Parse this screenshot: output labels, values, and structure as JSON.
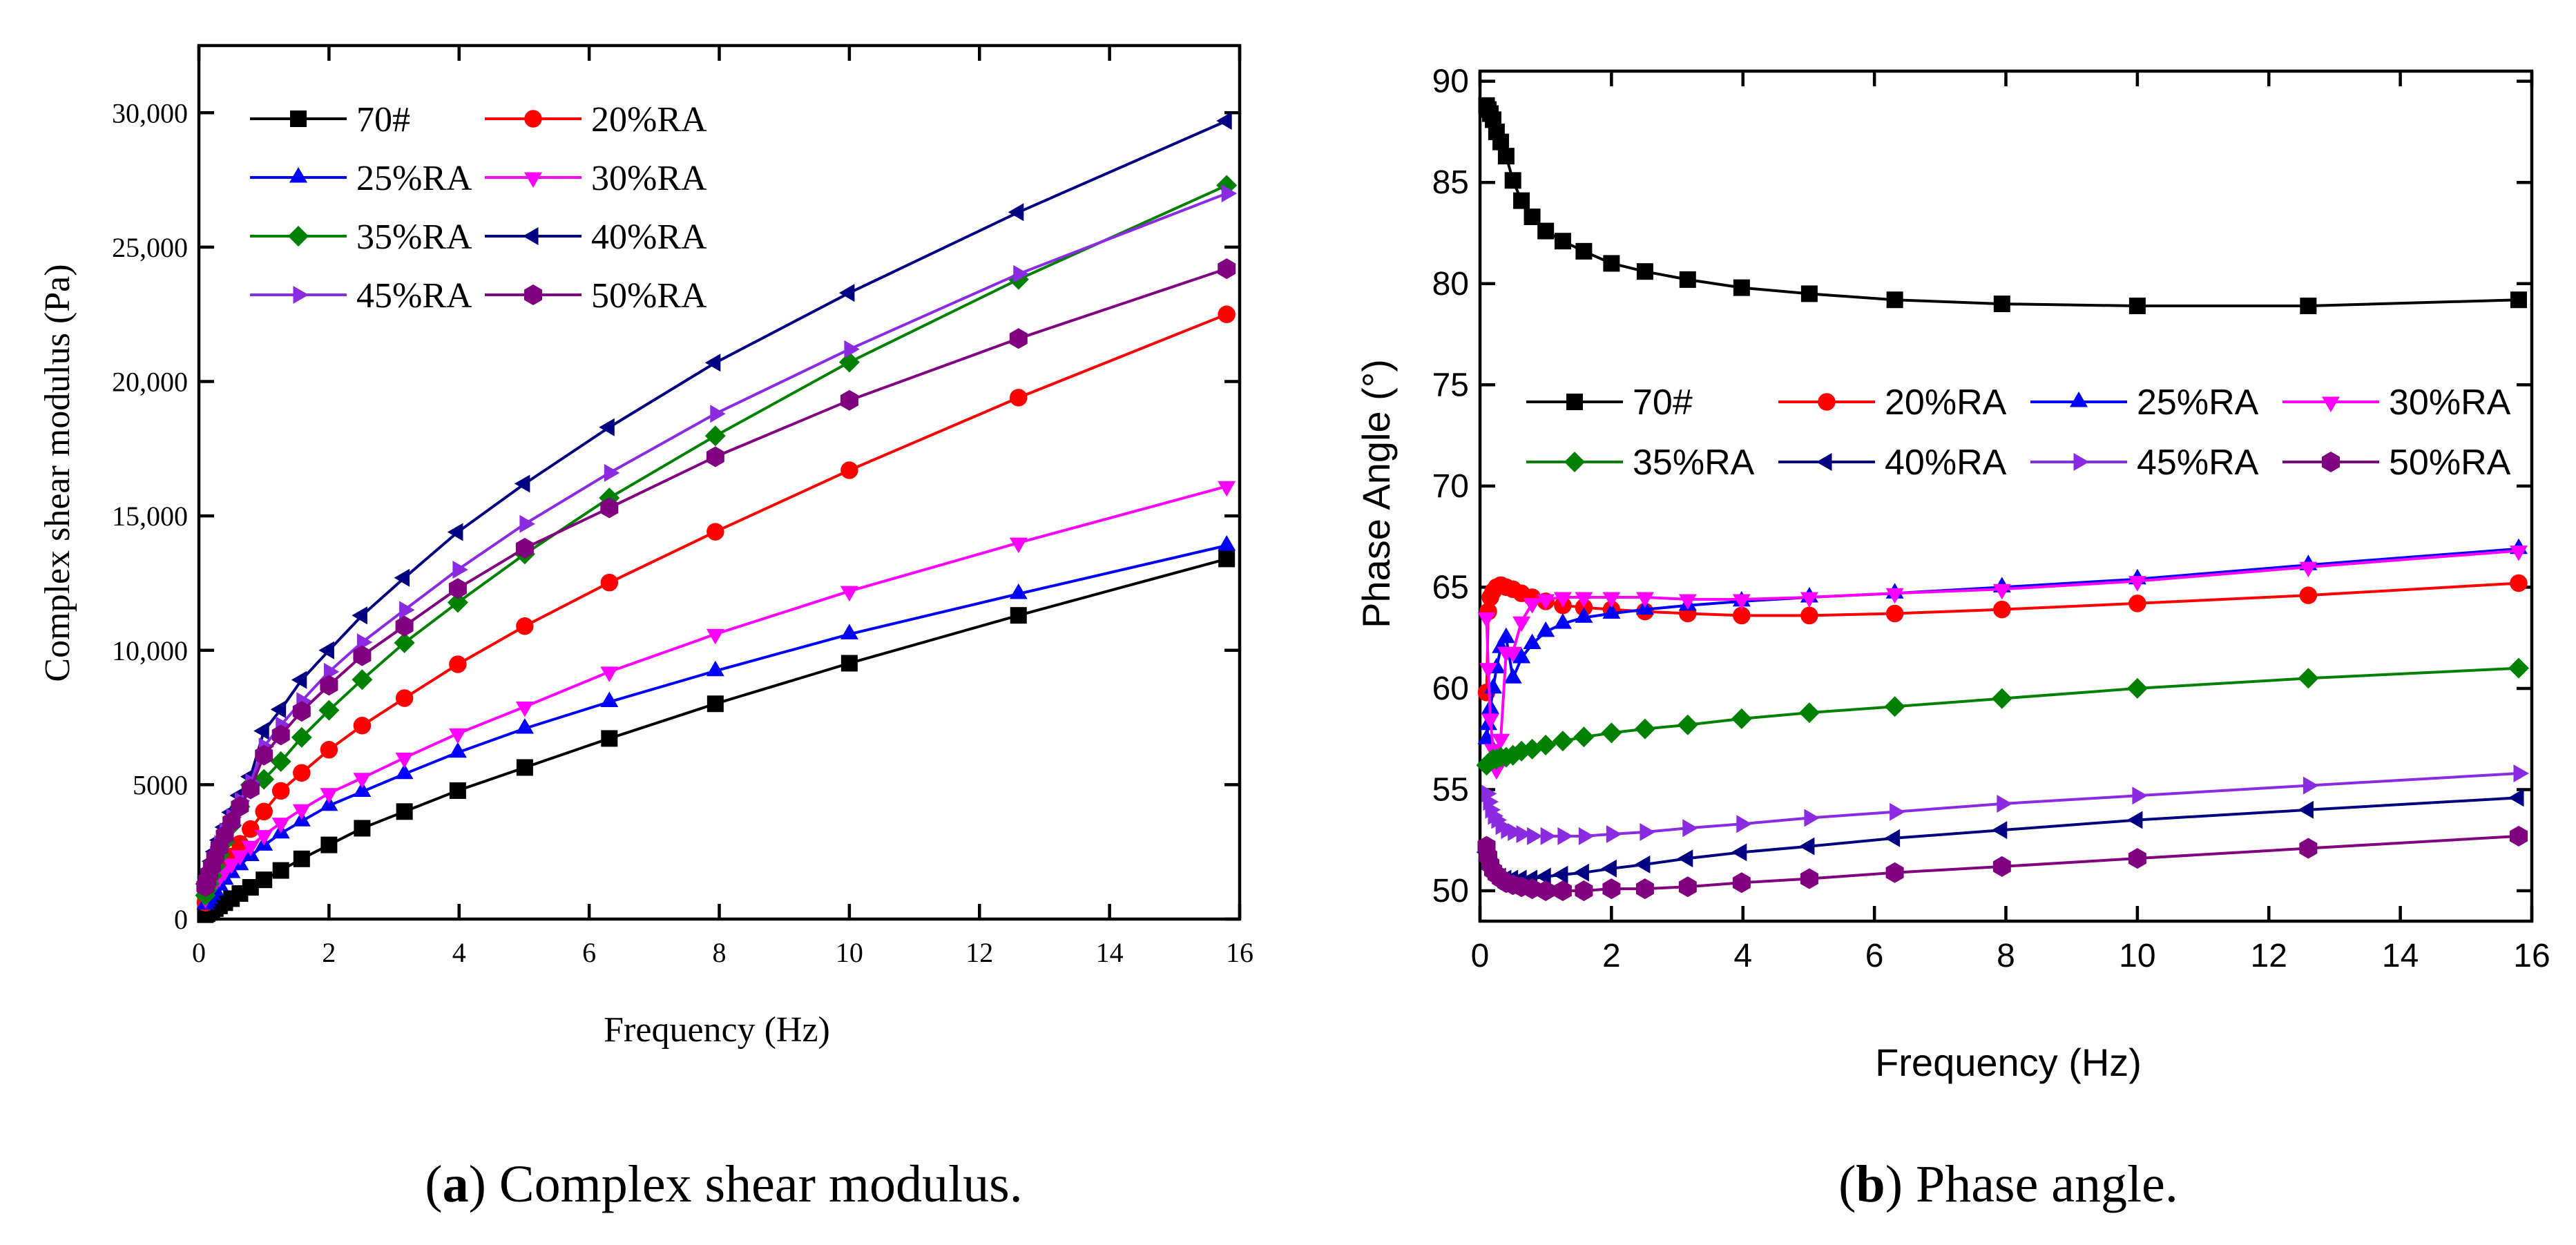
{
  "series_styles": [
    {
      "name": "70#",
      "color": "#000000",
      "marker": "square"
    },
    {
      "name": "20%RA",
      "color": "#ff0000",
      "marker": "circle"
    },
    {
      "name": "25%RA",
      "color": "#0000ff",
      "marker": "triangle-up"
    },
    {
      "name": "30%RA",
      "color": "#ff00ff",
      "marker": "triangle-down"
    },
    {
      "name": "35%RA",
      "color": "#008000",
      "marker": "diamond"
    },
    {
      "name": "40%RA",
      "color": "#000080",
      "marker": "triangle-left"
    },
    {
      "name": "45%RA",
      "color": "#8a2be2",
      "marker": "triangle-right"
    },
    {
      "name": "50%RA",
      "color": "#800080",
      "marker": "hexagon"
    }
  ],
  "chart_data": [
    {
      "id": "a",
      "type": "line",
      "caption_letter": "a",
      "caption_text": "Complex shear modulus.",
      "xlabel": "Frequency (Hz)",
      "ylabel": "Complex shear modulus (Pa)",
      "xlim": [
        0,
        16
      ],
      "ylim": [
        0,
        32500
      ],
      "xticks": [
        0,
        2,
        4,
        6,
        8,
        10,
        12,
        14,
        16
      ],
      "xtick_labels": [
        "0",
        "2",
        "4",
        "6",
        "8",
        "10",
        "12",
        "14",
        "16"
      ],
      "yticks": [
        0,
        5000,
        10000,
        15000,
        20000,
        25000,
        30000
      ],
      "ytick_labels": [
        "0",
        "5000",
        "10,000",
        "15,000",
        "20,000",
        "25,000",
        "30,000"
      ],
      "legend_position": "top-left",
      "x": [
        0.1,
        0.126,
        0.158,
        0.2,
        0.251,
        0.316,
        0.398,
        0.501,
        0.631,
        0.794,
        1.0,
        1.26,
        1.58,
        2.0,
        2.51,
        3.16,
        3.98,
        5.01,
        6.31,
        7.94,
        10.0,
        12.6,
        15.8
      ],
      "series": [
        {
          "name": "70#",
          "values": [
            163,
            200,
            250,
            310,
            390,
            490,
            610,
            760,
            950,
            1180,
            1460,
            1810,
            2240,
            2760,
            3380,
            4000,
            4780,
            5640,
            6720,
            8010,
            9520,
            11300,
            13400
          ]
        },
        {
          "name": "20%RA",
          "values": [
            610,
            740,
            900,
            1090,
            1320,
            1600,
            1930,
            2330,
            2800,
            3350,
            4000,
            4770,
            5440,
            6300,
            7200,
            8220,
            9480,
            10900,
            12520,
            14410,
            16700,
            19400,
            22500
          ]
        },
        {
          "name": "25%RA",
          "values": [
            550,
            650,
            760,
            900,
            1060,
            1250,
            1470,
            1720,
            2010,
            2350,
            2740,
            3190,
            3640,
            4220,
            4740,
            5400,
            6200,
            7090,
            8080,
            9230,
            10600,
            12100,
            13900
          ]
        },
        {
          "name": "30%RA",
          "values": [
            780,
            900,
            1030,
            1180,
            1360,
            1560,
            1790,
            2060,
            2370,
            2720,
            3120,
            3580,
            4080,
            4680,
            5250,
            6000,
            6900,
            7900,
            9200,
            10600,
            12200,
            14000,
            16100
          ]
        },
        {
          "name": "35%RA",
          "values": [
            880,
            1080,
            1320,
            1610,
            1960,
            2380,
            2880,
            3480,
            4180,
            4990,
            5200,
            5860,
            6760,
            7770,
            8910,
            10280,
            11780,
            13580,
            15670,
            17980,
            20720,
            23800,
            27300
          ]
        },
        {
          "name": "40%RA",
          "values": [
            1310,
            1550,
            1830,
            2150,
            2510,
            2940,
            3420,
            3970,
            4600,
            5300,
            7000,
            7800,
            8900,
            10000,
            11300,
            12700,
            14400,
            16200,
            18300,
            20700,
            23300,
            26300,
            29700
          ]
        },
        {
          "name": "45%RA",
          "values": [
            1250,
            1480,
            1740,
            2040,
            2390,
            2790,
            3260,
            3790,
            4400,
            5090,
            6420,
            7210,
            8110,
            9200,
            10300,
            11500,
            13000,
            14700,
            16600,
            18800,
            21200,
            24000,
            27000
          ]
        },
        {
          "name": "50%RA",
          "values": [
            1210,
            1430,
            1680,
            1970,
            2300,
            2680,
            3120,
            3620,
            4190,
            4840,
            6100,
            6850,
            7730,
            8700,
            9800,
            10900,
            12300,
            13800,
            15300,
            17200,
            19300,
            21600,
            24200
          ]
        }
      ]
    },
    {
      "id": "b",
      "type": "line",
      "caption_letter": "b",
      "caption_text": "Phase angle.",
      "xlabel": "Frequency (Hz)",
      "ylabel": "Phase Angle (°)",
      "xlim": [
        0,
        16
      ],
      "ylim": [
        48.5,
        90.5
      ],
      "xticks": [
        0,
        2,
        4,
        6,
        8,
        10,
        12,
        14,
        16
      ],
      "xtick_labels": [
        "0",
        "2",
        "4",
        "6",
        "8",
        "10",
        "12",
        "14",
        "16"
      ],
      "yticks": [
        50,
        55,
        60,
        65,
        70,
        75,
        80,
        85,
        90
      ],
      "ytick_labels": [
        "50",
        "55",
        "60",
        "65",
        "70",
        "75",
        "80",
        "85",
        "90"
      ],
      "legend_position": "center",
      "x": [
        0.1,
        0.126,
        0.158,
        0.2,
        0.251,
        0.316,
        0.398,
        0.501,
        0.631,
        0.794,
        1.0,
        1.26,
        1.58,
        2.0,
        2.51,
        3.16,
        3.98,
        5.01,
        6.31,
        7.94,
        10.0,
        12.6,
        15.8
      ],
      "series": [
        {
          "name": "70#",
          "values": [
            88.8,
            88.6,
            88.4,
            88.1,
            87.5,
            87.0,
            86.3,
            85.1,
            84.1,
            83.3,
            82.6,
            82.1,
            81.6,
            81.0,
            80.6,
            80.2,
            79.8,
            79.5,
            79.2,
            79.0,
            78.9,
            78.9,
            79.2
          ]
        },
        {
          "name": "20%RA",
          "values": [
            59.8,
            63.8,
            64.5,
            64.8,
            65.0,
            65.1,
            65.0,
            64.9,
            64.7,
            64.5,
            64.3,
            64.1,
            64.0,
            63.9,
            63.8,
            63.7,
            63.6,
            63.6,
            63.7,
            63.9,
            64.2,
            64.6,
            65.2
          ]
        },
        {
          "name": "25%RA",
          "values": [
            57.5,
            58.2,
            59.0,
            60.0,
            61.0,
            62.0,
            62.5,
            60.5,
            61.5,
            62.2,
            62.8,
            63.2,
            63.5,
            63.7,
            63.9,
            64.1,
            64.3,
            64.5,
            64.7,
            65.0,
            65.4,
            66.1,
            66.9
          ]
        },
        {
          "name": "30%RA",
          "values": [
            63.5,
            61.0,
            58.5,
            57.0,
            56.0,
            57.5,
            61.8,
            61.8,
            63.3,
            64.2,
            64.4,
            64.5,
            64.5,
            64.5,
            64.5,
            64.4,
            64.4,
            64.5,
            64.7,
            64.9,
            65.3,
            66.0,
            66.8
          ]
        },
        {
          "name": "35%RA",
          "values": [
            56.2,
            56.3,
            56.4,
            56.5,
            56.5,
            56.6,
            56.6,
            56.7,
            56.9,
            57.0,
            57.2,
            57.4,
            57.6,
            57.8,
            58.0,
            58.2,
            58.5,
            58.8,
            59.1,
            59.5,
            60.0,
            60.5,
            61.0
          ]
        },
        {
          "name": "40%RA",
          "values": [
            51.9,
            51.5,
            51.2,
            51.0,
            50.8,
            50.7,
            50.6,
            50.6,
            50.6,
            50.6,
            50.7,
            50.8,
            50.9,
            51.1,
            51.3,
            51.6,
            51.9,
            52.2,
            52.6,
            53.0,
            53.5,
            54.0,
            54.6
          ]
        },
        {
          "name": "45%RA",
          "values": [
            54.8,
            54.4,
            54.0,
            53.7,
            53.5,
            53.2,
            53.0,
            52.9,
            52.8,
            52.7,
            52.7,
            52.7,
            52.7,
            52.8,
            52.9,
            53.1,
            53.3,
            53.6,
            53.9,
            54.3,
            54.7,
            55.2,
            55.8
          ]
        },
        {
          "name": "50%RA",
          "values": [
            52.2,
            51.7,
            51.3,
            51.0,
            50.8,
            50.6,
            50.4,
            50.3,
            50.2,
            50.1,
            50.0,
            50.0,
            50.0,
            50.1,
            50.1,
            50.2,
            50.4,
            50.6,
            50.9,
            51.2,
            51.6,
            52.1,
            52.7
          ]
        }
      ]
    }
  ]
}
